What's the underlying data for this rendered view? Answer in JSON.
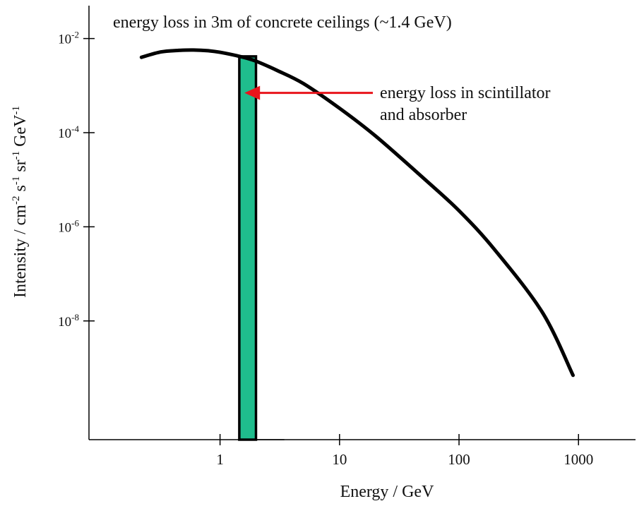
{
  "chart_data": {
    "type": "line",
    "title": "energy loss in 3m of concrete ceilings  (~1.4 GeV)",
    "xlabel": "Energy / GeV",
    "ylabel": {
      "base": "Intensity / cm",
      "exp1": "-2",
      "mid1": " s",
      "exp2": "-1",
      "mid2": " sr",
      "exp3": "-1",
      "mid3": " GeV",
      "exp4": "-1"
    },
    "x_scale": "log",
    "y_scale": "log",
    "xlim": [
      0.08,
      3000
    ],
    "ylim": [
      3e-11,
      0.05
    ],
    "x_ticks": [
      {
        "value": 1,
        "label": "1"
      },
      {
        "value": 10,
        "label": "10"
      },
      {
        "value": 100,
        "label": "100"
      },
      {
        "value": 1000,
        "label": "1000"
      }
    ],
    "y_ticks": [
      {
        "value": 0.01,
        "base": "10",
        "exp": "-2"
      },
      {
        "value": 0.0001,
        "base": "10",
        "exp": "-4"
      },
      {
        "value": 1e-06,
        "base": "10",
        "exp": "-6"
      },
      {
        "value": 1e-08,
        "base": "10",
        "exp": "-8"
      }
    ],
    "series": [
      {
        "x": [
          0.22,
          0.32,
          0.45,
          0.6,
          0.8,
          1.0,
          1.5,
          2.0,
          3.0,
          5.0,
          10,
          20,
          50,
          100,
          200,
          500,
          900
        ],
        "y": [
          0.004,
          0.0052,
          0.0056,
          0.0057,
          0.0055,
          0.0051,
          0.0041,
          0.0033,
          0.0021,
          0.0011,
          0.00033,
          8.5e-05,
          1.1e-05,
          2.2e-06,
          3.2e-07,
          1.5e-08,
          7e-10
        ]
      }
    ],
    "band": {
      "x_start": 1.45,
      "x_end": 2.0,
      "color": "#1fbd8d"
    },
    "annotation": {
      "lines": [
        "energy loss in scintillator",
        "and absorber"
      ],
      "arrow_color": "#e8141b",
      "arrow_target": {
        "x": 1.6,
        "y": 0.0007
      },
      "arrow_tail": {
        "x": 19,
        "y": 0.0007
      }
    },
    "legend": "none",
    "grid": false
  }
}
